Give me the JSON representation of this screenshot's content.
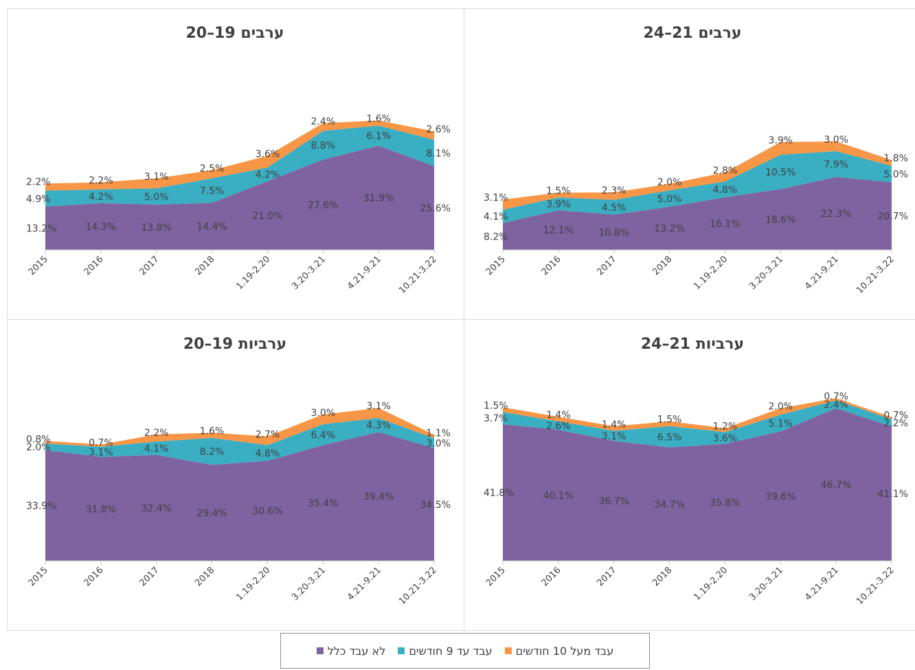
{
  "colors": {
    "not_worked": "#7f63a1",
    "up_to_9": "#3aaec3",
    "over_10": "#f79646",
    "text": "#404040"
  },
  "legend": {
    "not_worked": "לא עבד כלל",
    "up_to_9": "עבד עד 9 חודשים",
    "over_10": "עבד מעל 10 חודשים"
  },
  "chart_data": [
    {
      "type": "area",
      "title": "ערבים 19–20",
      "categories": [
        "2015",
        "2016",
        "2017",
        "2018",
        "1.19-2.20",
        "3.20-3.21",
        "4.21-9.21",
        "10.21-3.22"
      ],
      "ylim": [
        0,
        50
      ],
      "series": [
        {
          "name": "לא עבד כלל",
          "values": [
            13.2,
            14.3,
            13.8,
            14.4,
            21.0,
            27.6,
            31.9,
            25.6
          ],
          "labels": [
            "13.2%",
            "14.3%",
            "13.8%",
            "14.4%",
            "21.0%",
            "27.6%",
            "31.9%",
            "25.6%"
          ]
        },
        {
          "name": "עבד עד 9 חודשים",
          "values": [
            4.9,
            4.2,
            5.0,
            7.5,
            4.2,
            8.8,
            6.1,
            8.1
          ],
          "labels": [
            "4.9%",
            "4.2%",
            "5.0%",
            "7.5%",
            "4.2%",
            "8.8%",
            "6.1%",
            "8.1%"
          ]
        },
        {
          "name": "עבד מעל 10 חודשים",
          "values": [
            2.2,
            2.2,
            3.1,
            2.5,
            3.6,
            2.4,
            1.6,
            2.6
          ],
          "labels": [
            "2.2%",
            "2.2%",
            "3.1%",
            "2.5%",
            "3.6%",
            "2.4%",
            "1.6%",
            "2.6%"
          ]
        }
      ]
    },
    {
      "type": "area",
      "title": "ערבים 21–24",
      "categories": [
        "2015",
        "2016",
        "2017",
        "2018",
        "1.19-2.20",
        "3.20-3.21",
        "4.21-9.21",
        "10.21-3.22"
      ],
      "ylim": [
        0,
        50
      ],
      "series": [
        {
          "name": "לא עבד כלל",
          "values": [
            8.2,
            12.1,
            10.8,
            13.2,
            16.1,
            18.6,
            22.3,
            20.7
          ],
          "labels": [
            "8.2%",
            "12.1%",
            "10.8%",
            "13.2%",
            "16.1%",
            "18.6%",
            "22.3%",
            "20.7%"
          ]
        },
        {
          "name": "עבד עד 9 חודשים",
          "values": [
            4.1,
            3.9,
            4.5,
            5.0,
            4.8,
            10.5,
            7.9,
            5.0
          ],
          "labels": [
            "4.1%",
            "3.9%",
            "4.5%",
            "5.0%",
            "4.8%",
            "10.5%",
            "7.9%",
            "5.0%"
          ]
        },
        {
          "name": "עבד מעל 10 חודשים",
          "values": [
            3.1,
            1.5,
            2.3,
            2.0,
            2.8,
            3.9,
            3.0,
            1.8
          ],
          "labels": [
            "3.1%",
            "1.5%",
            "2.3%",
            "2.0%",
            "2.8%",
            "3.9%",
            "3.0%",
            "1.8%"
          ]
        }
      ]
    },
    {
      "type": "area",
      "title": "ערביות 19–20",
      "categories": [
        "2015",
        "2016",
        "2017",
        "2018",
        "1.19-2.20",
        "3.20-3.21",
        "4.21-9.21",
        "10.21-3.22"
      ],
      "ylim": [
        0,
        50
      ],
      "series": [
        {
          "name": "לא עבד כלל",
          "values": [
            33.9,
            31.8,
            32.4,
            29.4,
            30.6,
            35.4,
            39.4,
            34.5
          ],
          "labels": [
            "33.9%",
            "31.8%",
            "32.4%",
            "29.4%",
            "30.6%",
            "35.4%",
            "39.4%",
            "34.5%"
          ]
        },
        {
          "name": "עבד עד 9 חודשים",
          "values": [
            2.0,
            3.1,
            4.1,
            8.2,
            4.8,
            6.4,
            4.3,
            3.0
          ],
          "labels": [
            "2.0%",
            "3.1%",
            "4.1%",
            "8.2%",
            "4.8%",
            "6.4%",
            "4.3%",
            "3.0%"
          ]
        },
        {
          "name": "עבד מעל 10 חודשים",
          "values": [
            0.8,
            0.7,
            2.2,
            1.6,
            2.7,
            3.0,
            3.1,
            1.1
          ],
          "labels": [
            "0.8%",
            "0.7%",
            "2.2%",
            "1.6%",
            "2.7%",
            "3.0%",
            "3.1%",
            "1.1%"
          ]
        }
      ]
    },
    {
      "type": "area",
      "title": "ערביות 21–24",
      "categories": [
        "2015",
        "2016",
        "2017",
        "2018",
        "1.19-2.20",
        "3.20-3.21",
        "4.21-9.21",
        "10.21-3.22"
      ],
      "ylim": [
        0,
        50
      ],
      "series": [
        {
          "name": "לא עבד כלל",
          "values": [
            41.8,
            40.1,
            36.7,
            34.7,
            35.8,
            39.6,
            46.7,
            41.1
          ],
          "labels": [
            "41.8%",
            "40.1%",
            "36.7%",
            "34.7%",
            "35.8%",
            "39.6%",
            "46.7%",
            "41.1%"
          ]
        },
        {
          "name": "עבד עד 9 חודשים",
          "values": [
            3.7,
            2.6,
            3.1,
            6.5,
            3.6,
            5.1,
            2.4,
            2.2
          ],
          "labels": [
            "3.7%",
            "2.6%",
            "3.1%",
            "6.5%",
            "3.6%",
            "5.1%",
            "2.4%",
            "2.2%"
          ]
        },
        {
          "name": "עבד מעל 10 חודשים",
          "values": [
            1.5,
            1.4,
            1.4,
            1.5,
            1.2,
            2.0,
            0.7,
            0.7
          ],
          "labels": [
            "1.5%",
            "1.4%",
            "1.4%",
            "1.5%",
            "1.2%",
            "2.0%",
            "0.7%",
            "0.7%"
          ]
        }
      ]
    }
  ]
}
